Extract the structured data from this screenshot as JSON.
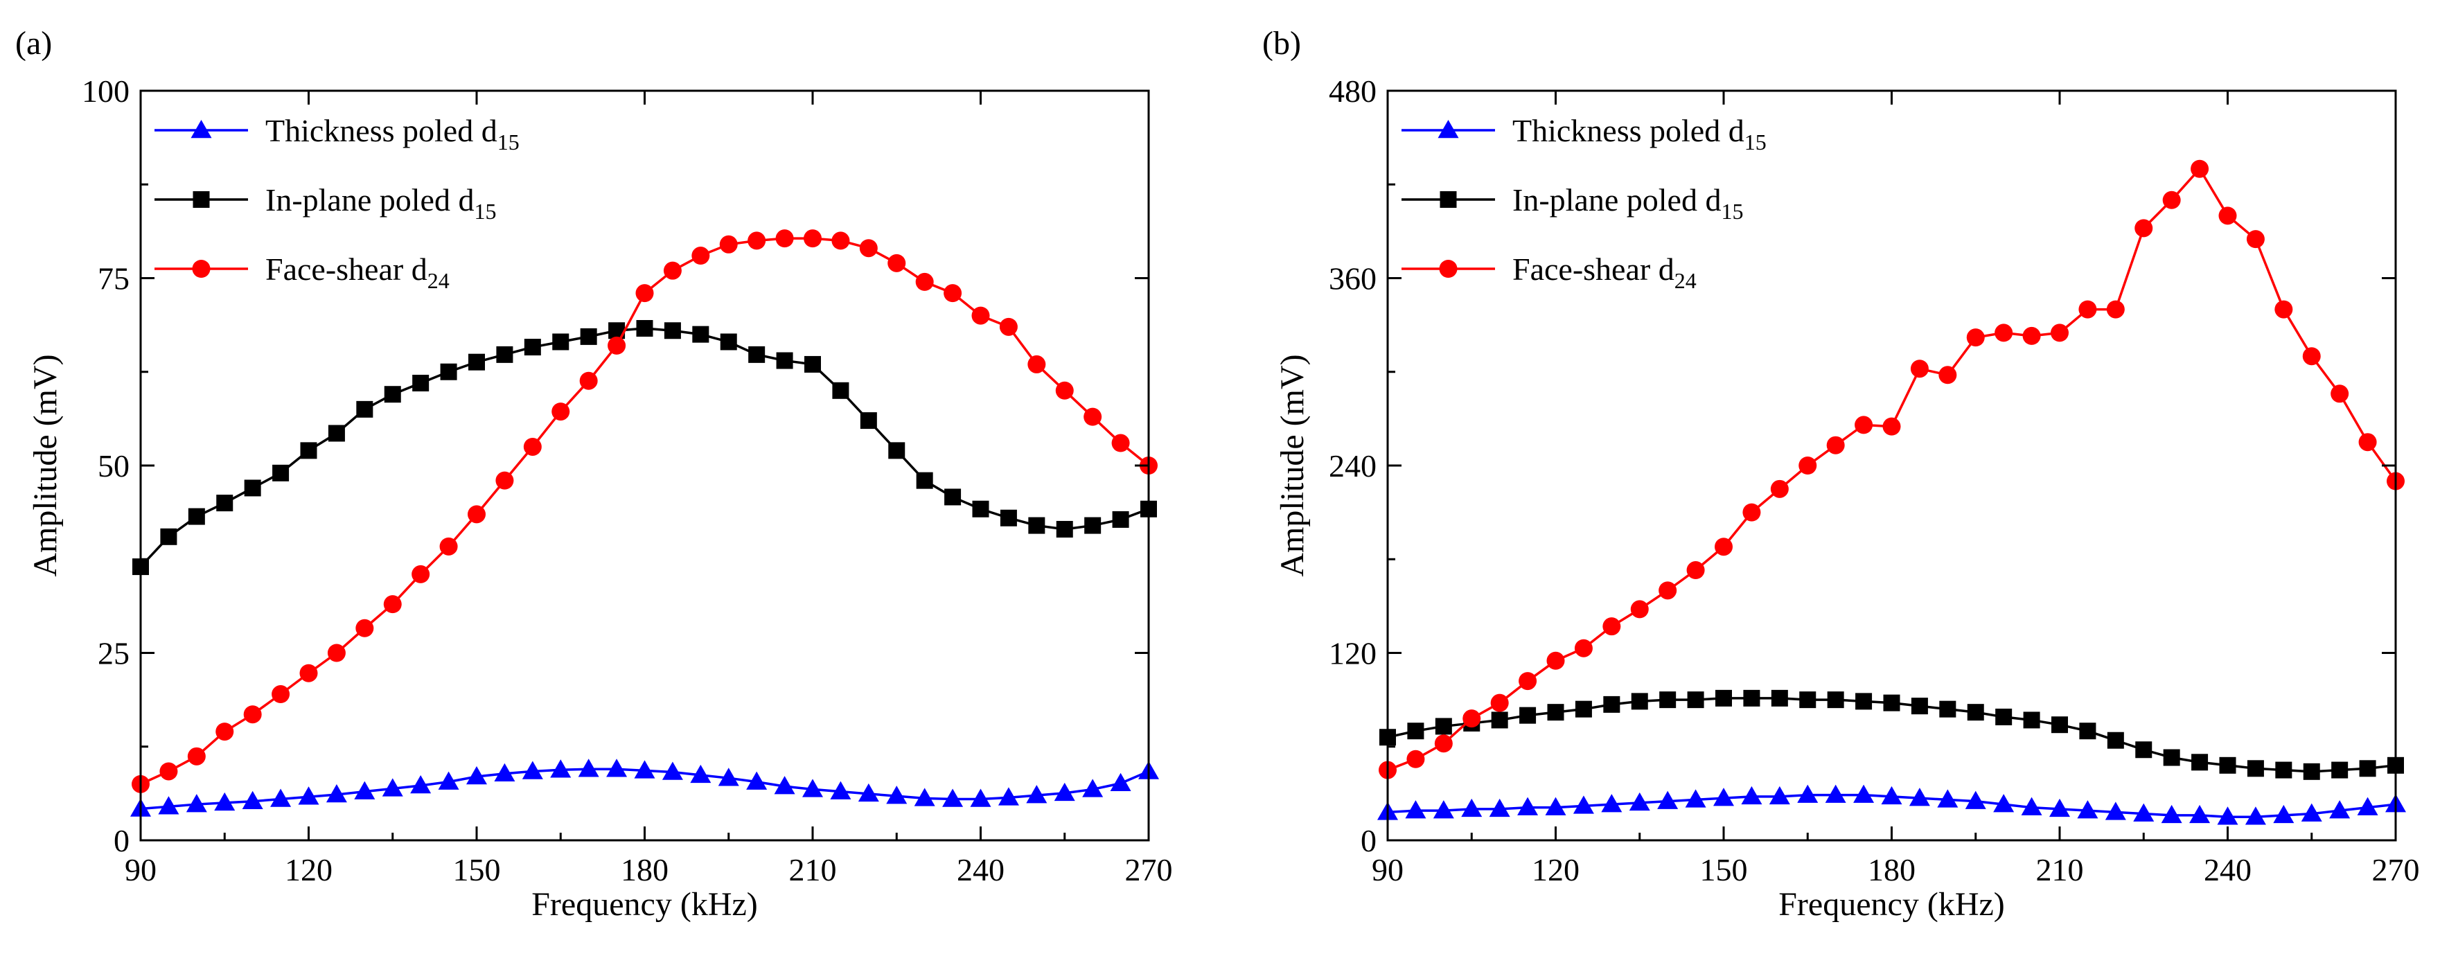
{
  "chart_data": [
    {
      "panel_label": "(a)",
      "type": "line",
      "xlabel": "Frequency (kHz)",
      "ylabel": "Amplitude (mV)",
      "xlim": [
        90,
        270
      ],
      "ylim": [
        0,
        100
      ],
      "xticks": [
        90,
        120,
        150,
        180,
        210,
        240,
        270
      ],
      "yticks": [
        0,
        25,
        50,
        75,
        100
      ],
      "legend_position": "top-left",
      "x": [
        90,
        95,
        100,
        105,
        110,
        115,
        120,
        125,
        130,
        135,
        140,
        145,
        150,
        155,
        160,
        165,
        170,
        175,
        180,
        185,
        190,
        195,
        200,
        205,
        210,
        215,
        220,
        225,
        230,
        235,
        240,
        245,
        250,
        255,
        260,
        265,
        270
      ],
      "series": [
        {
          "legend_text": "Thickness poled d",
          "legend_sub": "15",
          "color": "#0000ff",
          "marker": "triangle",
          "values": [
            4.2,
            4.5,
            4.8,
            5.0,
            5.2,
            5.5,
            5.8,
            6.1,
            6.5,
            6.9,
            7.3,
            7.8,
            8.5,
            8.9,
            9.2,
            9.4,
            9.5,
            9.5,
            9.3,
            9.1,
            8.7,
            8.3,
            7.8,
            7.2,
            6.8,
            6.5,
            6.2,
            5.9,
            5.6,
            5.5,
            5.5,
            5.7,
            6.0,
            6.3,
            6.8,
            7.6,
            9.2
          ]
        },
        {
          "legend_text": "In-plane poled d",
          "legend_sub": "15",
          "color": "#000000",
          "marker": "square",
          "values": [
            36.5,
            40.5,
            43.2,
            45.0,
            47.0,
            49.0,
            52.0,
            54.3,
            57.5,
            59.5,
            61.0,
            62.5,
            63.8,
            64.8,
            65.8,
            66.5,
            67.2,
            68.0,
            68.3,
            68.0,
            67.5,
            66.5,
            64.8,
            64.0,
            63.5,
            60.0,
            56.0,
            52.0,
            48.0,
            45.8,
            44.2,
            43.0,
            42.0,
            41.5,
            42.0,
            42.8,
            44.2
          ]
        },
        {
          "legend_text": "Face-shear d",
          "legend_sub": "24",
          "color": "#ff0000",
          "marker": "circle",
          "values": [
            7.5,
            9.2,
            11.2,
            14.5,
            16.8,
            19.5,
            22.3,
            25.0,
            28.3,
            31.5,
            35.5,
            39.2,
            43.5,
            48.0,
            52.5,
            57.2,
            61.3,
            66.0,
            73.0,
            76.0,
            78.0,
            79.5,
            80.0,
            80.3,
            80.3,
            80.0,
            79.0,
            77.0,
            74.5,
            73.0,
            70.0,
            68.5,
            63.5,
            60.0,
            56.5,
            53.0,
            50.0
          ]
        }
      ]
    },
    {
      "panel_label": "(b)",
      "type": "line",
      "xlabel": "Frequency (kHz)",
      "ylabel": "Amplitude (mV)",
      "xlim": [
        90,
        270
      ],
      "ylim": [
        0,
        480
      ],
      "xticks": [
        90,
        120,
        150,
        180,
        210,
        240,
        270
      ],
      "yticks": [
        0,
        120,
        240,
        360,
        480
      ],
      "legend_position": "top-left",
      "x": [
        90,
        95,
        100,
        105,
        110,
        115,
        120,
        125,
        130,
        135,
        140,
        145,
        150,
        155,
        160,
        165,
        170,
        175,
        180,
        185,
        190,
        195,
        200,
        205,
        210,
        215,
        220,
        225,
        230,
        235,
        240,
        245,
        250,
        255,
        260,
        265,
        270
      ],
      "series": [
        {
          "legend_text": "Thickness poled d",
          "legend_sub": "15",
          "color": "#0000ff",
          "marker": "triangle",
          "values": [
            18,
            19,
            19,
            20,
            20,
            21,
            21,
            22,
            23,
            24,
            25,
            26,
            27,
            28,
            28,
            29,
            29,
            29,
            28,
            27,
            26,
            25,
            23,
            21,
            20,
            19,
            18,
            17,
            16,
            16,
            15,
            15,
            16,
            17,
            19,
            21,
            23
          ]
        },
        {
          "legend_text": "In-plane poled d",
          "legend_sub": "15",
          "color": "#000000",
          "marker": "square",
          "values": [
            66,
            70,
            73,
            75,
            77,
            80,
            82,
            84,
            87,
            89,
            90,
            90,
            91,
            91,
            91,
            90,
            90,
            89,
            88,
            86,
            84,
            82,
            79,
            77,
            74,
            70,
            64,
            58,
            53,
            50,
            48,
            46,
            45,
            44,
            45,
            46,
            48
          ]
        },
        {
          "legend_text": "Face-shear d",
          "legend_sub": "24",
          "color": "#ff0000",
          "marker": "circle",
          "values": [
            45,
            52,
            62,
            78,
            88,
            102,
            115,
            123,
            137,
            148,
            160,
            173,
            188,
            210,
            225,
            240,
            253,
            266,
            265,
            302,
            298,
            322,
            325,
            323,
            325,
            340,
            340,
            392,
            410,
            430,
            400,
            385,
            340,
            310,
            286,
            255,
            230
          ]
        }
      ]
    }
  ]
}
